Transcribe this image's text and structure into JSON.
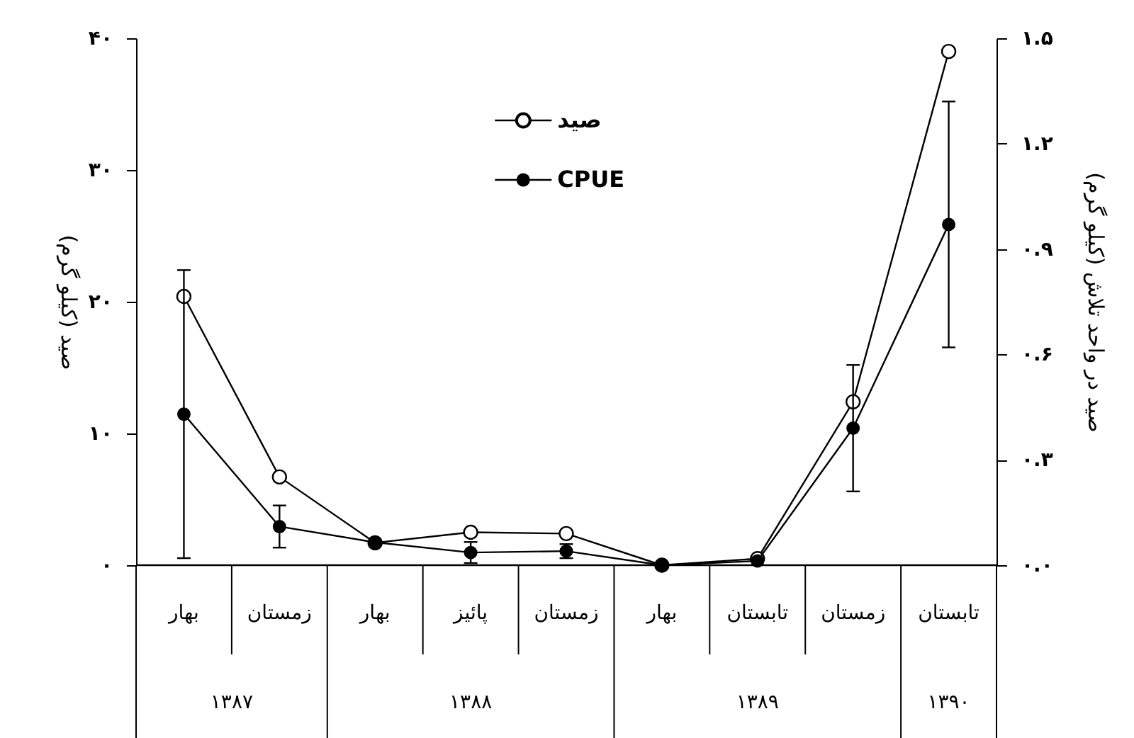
{
  "chart_data": {
    "type": "line",
    "categories": [
      "بهار",
      "زمستان",
      "بهار",
      "پائیز",
      "زمستان",
      "بهار",
      "تابستان",
      "زمستان",
      "تابستان"
    ],
    "series": [
      {
        "name": "صید",
        "color": "#000000",
        "values": [
          20.4,
          6.7,
          1.7,
          2.5,
          2.4,
          0,
          0.5,
          12.4,
          39.0
        ]
      },
      {
        "name": "CPUE",
        "color": "#000000",
        "axis": "y2",
        "values": [
          0.43,
          0.11,
          0.065,
          0.036,
          0.04,
          0.0,
          0.012,
          0.39,
          0.97
        ],
        "errors": [
          0.41,
          0.06,
          null,
          0.03,
          0.02,
          null,
          null,
          0.18,
          0.35
        ]
      }
    ],
    "ylabel": "صید (کیلو گرم)",
    "y2label": "صید در واحد تلاش (کیلو گرم)",
    "ylim": [
      0,
      40
    ],
    "yticks": [
      {
        "value": 0,
        "label": "۰"
      },
      {
        "value": 10,
        "label": "۱۰"
      },
      {
        "value": 20,
        "label": "۲۰"
      },
      {
        "value": 30,
        "label": "۳۰"
      },
      {
        "value": 40,
        "label": "۴۰"
      }
    ],
    "y2lim": [
      0,
      1.5
    ],
    "y2ticks": [
      {
        "value": 0,
        "label": "۰.۰"
      },
      {
        "value": 0.3,
        "label": "۰.۳"
      },
      {
        "value": 0.6,
        "label": "۰.۶"
      },
      {
        "value": 0.9,
        "label": "۰.۹"
      },
      {
        "value": 1.2,
        "label": "۱.۲"
      },
      {
        "value": 1.5,
        "label": "۱.۵"
      }
    ],
    "annotations": [
      "۱۳۸۷",
      "۱۳۸۸",
      "۱۳۸۹",
      "۱۳۹۰"
    ],
    "legend": "top",
    "marker": "circle",
    "line_style": "solid"
  }
}
